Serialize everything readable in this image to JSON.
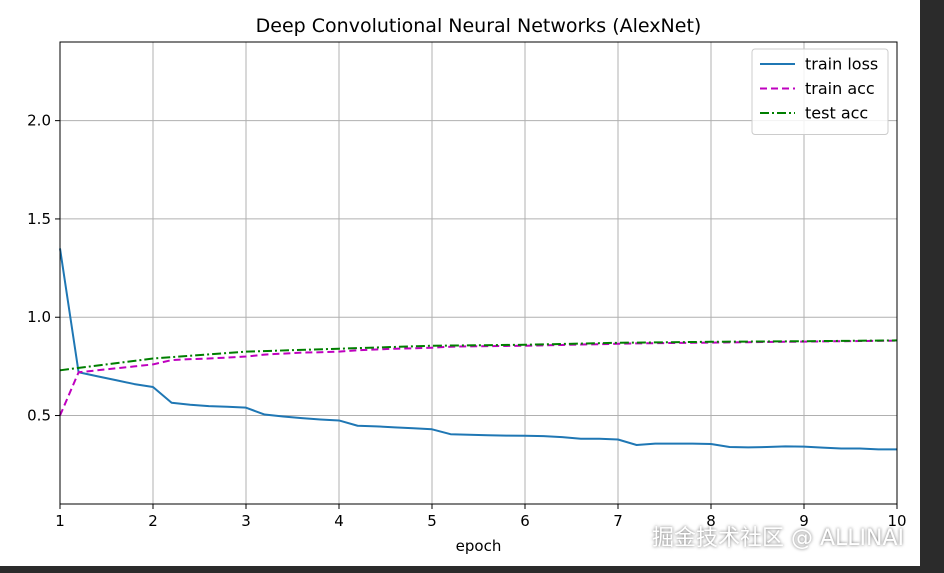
{
  "chart_data": {
    "type": "line",
    "title": "Deep Convolutional Neural Networks (AlexNet)",
    "xlabel": "epoch",
    "ylabel": "",
    "xlim": [
      1,
      10
    ],
    "ylim": [
      0.05,
      2.4
    ],
    "xticks": [
      "1",
      "2",
      "3",
      "4",
      "5",
      "6",
      "7",
      "8",
      "9",
      "10"
    ],
    "yticks": [
      "0.5",
      "1.0",
      "1.5",
      "2.0"
    ],
    "grid": true,
    "legend_position": "top-right",
    "series": [
      {
        "name": "train loss",
        "color": "#1f77b4",
        "dash": "solid",
        "x": [
          1.0,
          1.2,
          1.4,
          1.6,
          1.8,
          2.0,
          2.2,
          2.4,
          2.6,
          2.8,
          3.0,
          3.2,
          3.4,
          3.6,
          3.8,
          4.0,
          4.2,
          4.4,
          4.6,
          4.8,
          5.0,
          5.2,
          5.4,
          5.6,
          5.8,
          6.0,
          6.2,
          6.4,
          6.6,
          6.8,
          7.0,
          7.2,
          7.4,
          7.6,
          7.8,
          8.0,
          8.2,
          8.4,
          8.6,
          8.8,
          9.0,
          9.2,
          9.4,
          9.6,
          9.8,
          10.0
        ],
        "y": [
          1.35,
          0.72,
          0.7,
          0.68,
          0.66,
          0.645,
          0.565,
          0.555,
          0.548,
          0.545,
          0.54,
          0.505,
          0.495,
          0.487,
          0.48,
          0.475,
          0.448,
          0.445,
          0.44,
          0.435,
          0.43,
          0.405,
          0.402,
          0.4,
          0.398,
          0.397,
          0.395,
          0.39,
          0.382,
          0.382,
          0.378,
          0.35,
          0.357,
          0.357,
          0.357,
          0.355,
          0.34,
          0.338,
          0.34,
          0.343,
          0.342,
          0.337,
          0.332,
          0.332,
          0.328,
          0.328
        ]
      },
      {
        "name": "train acc",
        "color": "#bf00bf",
        "dash": "dashed",
        "x": [
          1.0,
          1.2,
          1.4,
          1.6,
          1.8,
          2.0,
          2.2,
          2.4,
          2.6,
          2.8,
          3.0,
          3.2,
          3.4,
          3.6,
          3.8,
          4.0,
          4.2,
          4.4,
          4.6,
          4.8,
          5.0,
          5.2,
          5.4,
          5.6,
          5.8,
          6.0,
          6.2,
          6.4,
          6.6,
          6.8,
          7.0,
          7.2,
          7.4,
          7.6,
          7.8,
          8.0,
          8.2,
          8.4,
          8.6,
          8.8,
          9.0,
          9.2,
          9.4,
          9.6,
          9.8,
          10.0
        ],
        "y": [
          0.5,
          0.72,
          0.73,
          0.74,
          0.75,
          0.76,
          0.782,
          0.787,
          0.79,
          0.795,
          0.8,
          0.81,
          0.815,
          0.82,
          0.822,
          0.825,
          0.832,
          0.836,
          0.84,
          0.842,
          0.845,
          0.85,
          0.852,
          0.853,
          0.854,
          0.855,
          0.857,
          0.859,
          0.861,
          0.863,
          0.865,
          0.867,
          0.868,
          0.869,
          0.87,
          0.871,
          0.872,
          0.873,
          0.874,
          0.875,
          0.876,
          0.877,
          0.878,
          0.879,
          0.88,
          0.881
        ]
      },
      {
        "name": "test acc",
        "color": "#007f00",
        "dash": "dashdot",
        "x": [
          1,
          2,
          3,
          4,
          5,
          6,
          7,
          8,
          9,
          10
        ],
        "y": [
          0.73,
          0.79,
          0.825,
          0.84,
          0.855,
          0.86,
          0.87,
          0.875,
          0.878,
          0.882
        ]
      }
    ]
  },
  "watermark": "掘金技术社区 @ ALLINAI"
}
